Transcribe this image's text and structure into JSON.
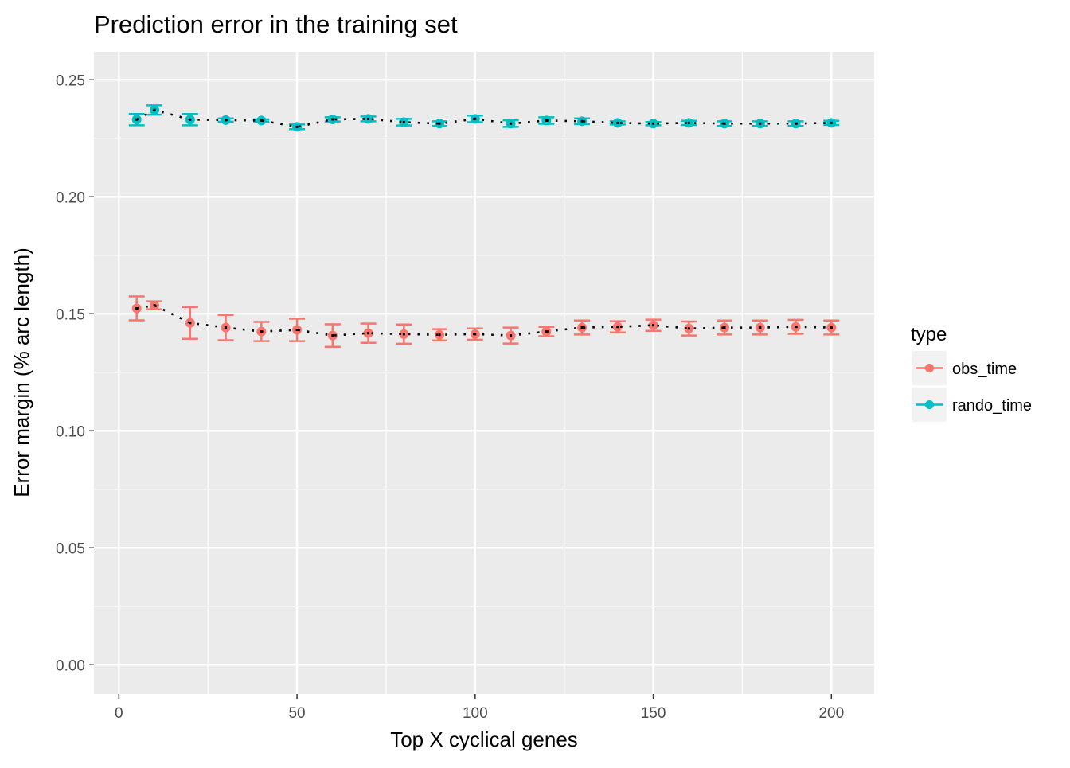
{
  "chart_data": {
    "type": "line",
    "title": "Prediction error in the training set",
    "xlabel": "Top X cyclical genes",
    "ylabel": "Error margin (% arc length)",
    "xlim": [
      -7,
      212
    ],
    "ylim": [
      -0.0125,
      0.262
    ],
    "xticks": [
      0,
      50,
      100,
      150,
      200
    ],
    "xtick_labels": [
      "0",
      "50",
      "100",
      "150",
      "200"
    ],
    "yticks": [
      0,
      0.05,
      0.1,
      0.15,
      0.2,
      0.25
    ],
    "ytick_labels": [
      "0.00",
      "0.05",
      "0.10",
      "0.15",
      "0.20",
      "0.25"
    ],
    "grid": true,
    "legend": {
      "title": "type",
      "placement": "right"
    },
    "x": [
      5,
      10,
      20,
      30,
      40,
      50,
      60,
      70,
      80,
      90,
      100,
      110,
      120,
      130,
      140,
      150,
      160,
      170,
      180,
      190,
      200
    ],
    "series": [
      {
        "name": "obs_time",
        "color": "#F8766D",
        "values": [
          0.1523,
          0.1536,
          0.1461,
          0.1441,
          0.1424,
          0.1431,
          0.1407,
          0.1417,
          0.1413,
          0.141,
          0.1413,
          0.1407,
          0.1424,
          0.1441,
          0.1444,
          0.1451,
          0.1437,
          0.1441,
          0.1441,
          0.1444,
          0.1441
        ],
        "errors": [
          0.0051,
          0.0017,
          0.0068,
          0.0054,
          0.0041,
          0.0048,
          0.0048,
          0.0041,
          0.0041,
          0.0024,
          0.0024,
          0.0034,
          0.002,
          0.003,
          0.0024,
          0.0024,
          0.003,
          0.003,
          0.003,
          0.003,
          0.003
        ]
      },
      {
        "name": "rando_time",
        "color": "#00BFC4",
        "values": [
          0.233,
          0.2371,
          0.233,
          0.2328,
          0.2326,
          0.2299,
          0.2331,
          0.2333,
          0.2319,
          0.2313,
          0.2333,
          0.2313,
          0.2326,
          0.2323,
          0.2316,
          0.2313,
          0.2316,
          0.2313,
          0.2313,
          0.2313,
          0.2316
        ],
        "errors": [
          0.0024,
          0.002,
          0.0024,
          0.0007,
          0.0005,
          0.001,
          0.0009,
          0.001,
          0.0014,
          0.001,
          0.0014,
          0.0014,
          0.0014,
          0.0012,
          0.0007,
          0.0007,
          0.0009,
          0.001,
          0.001,
          0.001,
          0.0009
        ]
      }
    ]
  }
}
